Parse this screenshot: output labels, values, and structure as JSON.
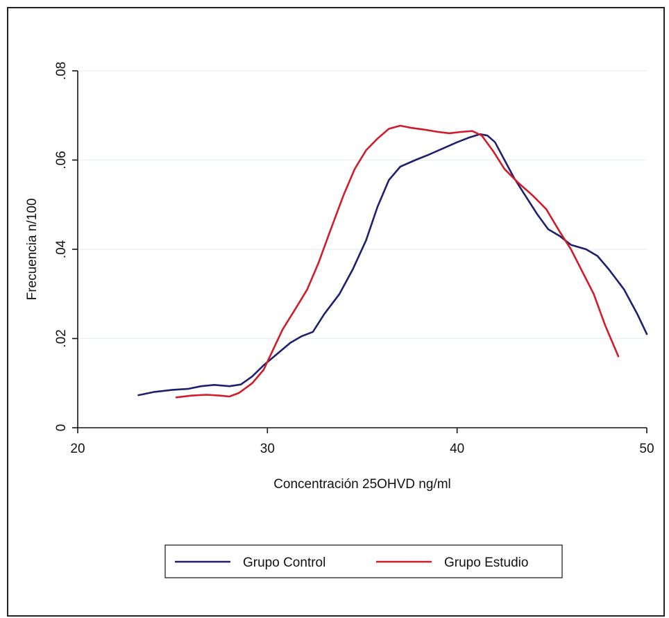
{
  "chart_data": {
    "type": "line",
    "title": "",
    "xlabel": "Concentración 25OHVD ng/ml",
    "ylabel": "Frecuencia n/100",
    "xlim": [
      20,
      50
    ],
    "ylim": [
      0,
      0.08
    ],
    "x_ticks": [
      "20",
      "30",
      "40",
      "50"
    ],
    "y_ticks": [
      "0",
      ".02",
      ".04",
      ".06",
      ".08"
    ],
    "grid": "horizontal",
    "legend_position": "bottom",
    "series": [
      {
        "name": "Grupo Control",
        "color": "#1f1f6e",
        "points": [
          [
            23.2,
            0.0073
          ],
          [
            24.0,
            0.008
          ],
          [
            25.0,
            0.0085
          ],
          [
            25.8,
            0.0087
          ],
          [
            26.5,
            0.0093
          ],
          [
            27.2,
            0.0096
          ],
          [
            28.0,
            0.0093
          ],
          [
            28.6,
            0.0097
          ],
          [
            29.2,
            0.0115
          ],
          [
            29.8,
            0.014
          ],
          [
            30.5,
            0.0165
          ],
          [
            31.2,
            0.019
          ],
          [
            31.8,
            0.0205
          ],
          [
            32.4,
            0.0215
          ],
          [
            33.0,
            0.0255
          ],
          [
            33.8,
            0.03
          ],
          [
            34.5,
            0.0355
          ],
          [
            35.2,
            0.042
          ],
          [
            35.8,
            0.0495
          ],
          [
            36.4,
            0.0555
          ],
          [
            37.0,
            0.0585
          ],
          [
            37.8,
            0.06
          ],
          [
            38.5,
            0.0612
          ],
          [
            39.2,
            0.0625
          ],
          [
            40.0,
            0.064
          ],
          [
            40.6,
            0.065
          ],
          [
            41.2,
            0.0658
          ],
          [
            41.6,
            0.0655
          ],
          [
            42.0,
            0.064
          ],
          [
            42.5,
            0.06
          ],
          [
            43.0,
            0.056
          ],
          [
            43.6,
            0.052
          ],
          [
            44.2,
            0.048
          ],
          [
            44.8,
            0.0445
          ],
          [
            45.4,
            0.043
          ],
          [
            46.0,
            0.041
          ],
          [
            46.8,
            0.04
          ],
          [
            47.4,
            0.0385
          ],
          [
            48.0,
            0.0355
          ],
          [
            48.8,
            0.031
          ],
          [
            49.5,
            0.0255
          ],
          [
            50.0,
            0.021
          ]
        ]
      },
      {
        "name": "Grupo Estudio",
        "color": "#d01c2a",
        "points": [
          [
            25.2,
            0.0068
          ],
          [
            26.0,
            0.0072
          ],
          [
            26.8,
            0.0074
          ],
          [
            27.5,
            0.0072
          ],
          [
            28.0,
            0.007
          ],
          [
            28.5,
            0.0078
          ],
          [
            29.2,
            0.01
          ],
          [
            29.8,
            0.013
          ],
          [
            30.3,
            0.0175
          ],
          [
            30.8,
            0.022
          ],
          [
            31.5,
            0.0268
          ],
          [
            32.1,
            0.031
          ],
          [
            32.7,
            0.037
          ],
          [
            33.3,
            0.044
          ],
          [
            34.0,
            0.052
          ],
          [
            34.6,
            0.058
          ],
          [
            35.2,
            0.0622
          ],
          [
            35.8,
            0.0648
          ],
          [
            36.4,
            0.067
          ],
          [
            37.0,
            0.0677
          ],
          [
            37.6,
            0.0672
          ],
          [
            38.3,
            0.0668
          ],
          [
            39.0,
            0.0663
          ],
          [
            39.6,
            0.066
          ],
          [
            40.2,
            0.0663
          ],
          [
            40.8,
            0.0665
          ],
          [
            41.3,
            0.0655
          ],
          [
            41.9,
            0.062
          ],
          [
            42.5,
            0.058
          ],
          [
            43.2,
            0.055
          ],
          [
            44.0,
            0.052
          ],
          [
            44.7,
            0.049
          ],
          [
            45.4,
            0.044
          ],
          [
            46.0,
            0.04
          ],
          [
            46.6,
            0.035
          ],
          [
            47.2,
            0.03
          ],
          [
            47.8,
            0.023
          ],
          [
            48.5,
            0.016
          ]
        ]
      }
    ]
  }
}
